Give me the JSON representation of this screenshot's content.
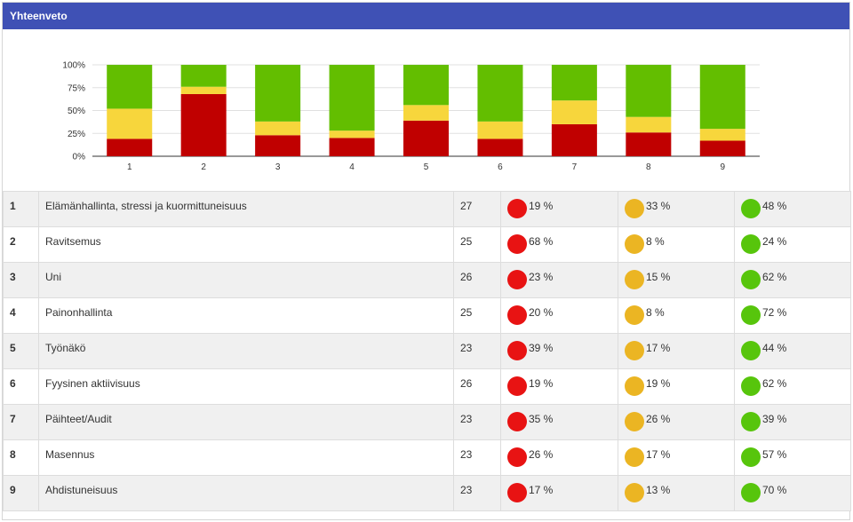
{
  "panel": {
    "title": "Yhteenveto"
  },
  "colors": {
    "header_bg": "#3f51b5",
    "bar_red": "#c00000",
    "bar_yellow": "#f7d63c",
    "bar_green": "#63be00",
    "dot_red": "#e81313",
    "dot_yellow": "#ebb523",
    "dot_green": "#57c50c"
  },
  "chart_data": {
    "type": "bar",
    "stacked": true,
    "title": "",
    "xlabel": "",
    "ylabel": "",
    "ylim": [
      0,
      100
    ],
    "yticks": [
      "0%",
      "25%",
      "50%",
      "75%",
      "100%"
    ],
    "categories": [
      "1",
      "2",
      "3",
      "4",
      "5",
      "6",
      "7",
      "8",
      "9"
    ],
    "series": [
      {
        "name": "red",
        "values": [
          19,
          68,
          23,
          20,
          39,
          19,
          35,
          26,
          17
        ]
      },
      {
        "name": "yellow",
        "values": [
          33,
          8,
          15,
          8,
          17,
          19,
          26,
          17,
          13
        ]
      },
      {
        "name": "green",
        "values": [
          48,
          24,
          62,
          72,
          44,
          62,
          39,
          57,
          70
        ]
      }
    ]
  },
  "table": {
    "rows": [
      {
        "num": "1",
        "name": "Elämänhallinta, stressi ja kuormittuneisuus",
        "count": "27",
        "red": "19 %",
        "yellow": "33 %",
        "green": "48 %"
      },
      {
        "num": "2",
        "name": "Ravitsemus",
        "count": "25",
        "red": "68 %",
        "yellow": "8 %",
        "green": "24 %"
      },
      {
        "num": "3",
        "name": "Uni",
        "count": "26",
        "red": "23 %",
        "yellow": "15 %",
        "green": "62 %"
      },
      {
        "num": "4",
        "name": "Painonhallinta",
        "count": "25",
        "red": "20 %",
        "yellow": "8 %",
        "green": "72 %"
      },
      {
        "num": "5",
        "name": "Työnäkö",
        "count": "23",
        "red": "39 %",
        "yellow": "17 %",
        "green": "44 %"
      },
      {
        "num": "6",
        "name": "Fyysinen aktiivisuus",
        "count": "26",
        "red": "19 %",
        "yellow": "19 %",
        "green": "62 %"
      },
      {
        "num": "7",
        "name": "Päihteet/Audit",
        "count": "23",
        "red": "35 %",
        "yellow": "26 %",
        "green": "39 %"
      },
      {
        "num": "8",
        "name": "Masennus",
        "count": "23",
        "red": "26 %",
        "yellow": "17 %",
        "green": "57 %"
      },
      {
        "num": "9",
        "name": "Ahdistuneisuus",
        "count": "23",
        "red": "17 %",
        "yellow": "13 %",
        "green": "70 %"
      }
    ]
  }
}
